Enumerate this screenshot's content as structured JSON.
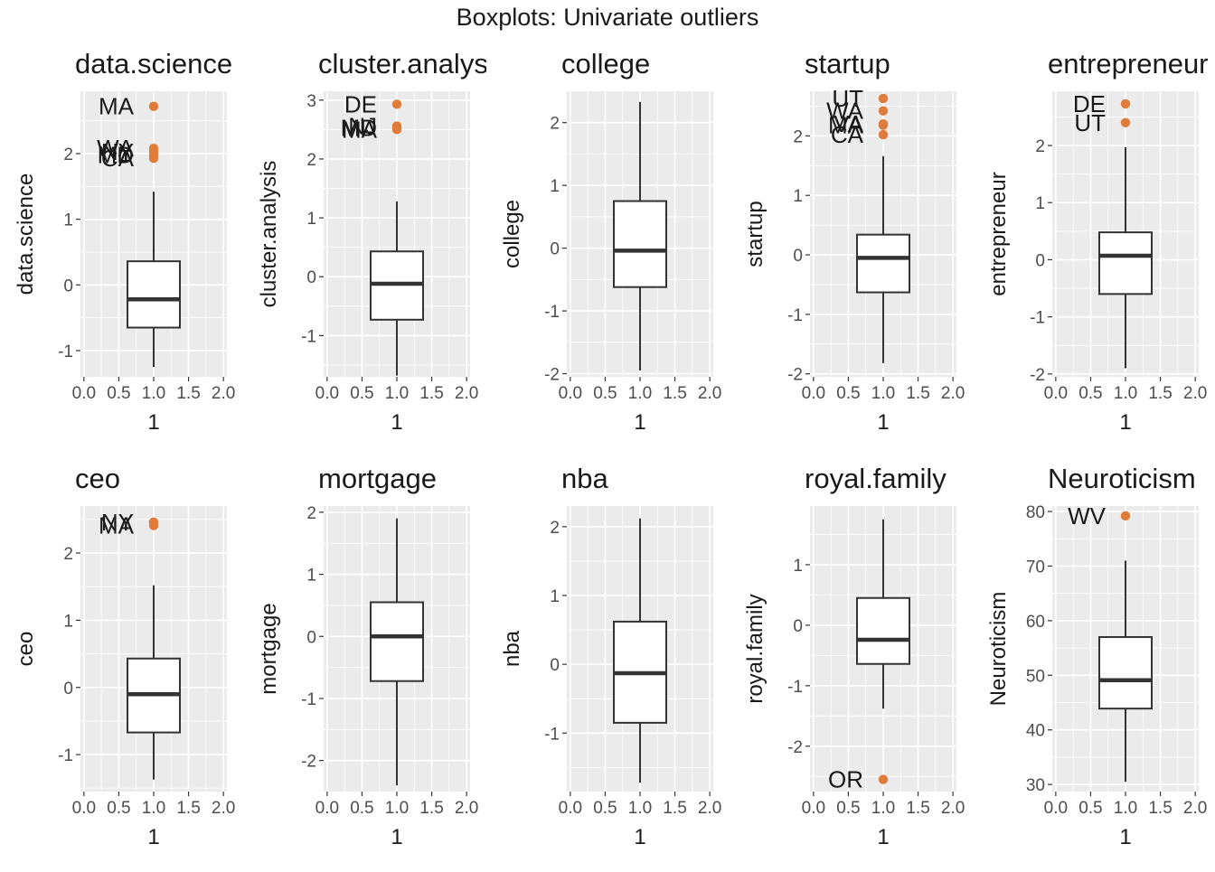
{
  "title": "Boxplots: Univariate outliers",
  "colors": {
    "panel_bg": "#EBEBEB",
    "grid": "#FFFFFF",
    "outlier": "#E07B39",
    "box_line": "#333333",
    "text": "#1a1a1a",
    "tick_text": "#4D4D4D"
  },
  "chart_data": [
    {
      "type": "boxplot",
      "title": "data.science",
      "ylabel": "data.science",
      "xlabel": "1",
      "xlim": [
        -0.05,
        2.05
      ],
      "x_ticks": [
        "0.0",
        "0.5",
        "1.0",
        "1.5",
        "2.0"
      ],
      "ylim": [
        -1.4,
        2.95
      ],
      "y_ticks": [
        -1,
        0,
        1,
        2
      ],
      "box": {
        "x": 1,
        "min": -1.25,
        "q1": -0.65,
        "median": -0.22,
        "q3": 0.36,
        "max": 1.42
      },
      "outliers": [
        {
          "value": 2.72,
          "label": "MA"
        },
        {
          "value": 2.08,
          "label": "WA"
        },
        {
          "value": 2.03,
          "label": "NY"
        },
        {
          "value": 1.98,
          "label": "MD"
        },
        {
          "value": 1.93,
          "label": "CA"
        }
      ]
    },
    {
      "type": "boxplot",
      "title": "cluster.analysis",
      "ylabel": "cluster.analysis",
      "xlabel": "1",
      "xlim": [
        -0.05,
        2.05
      ],
      "x_ticks": [
        "0.0",
        "0.5",
        "1.0",
        "1.5",
        "2.0"
      ],
      "ylim": [
        -1.7,
        3.15
      ],
      "y_ticks": [
        -1,
        0,
        1,
        2,
        3
      ],
      "box": {
        "x": 1,
        "min": -1.68,
        "q1": -0.73,
        "median": -0.12,
        "q3": 0.43,
        "max": 1.28
      },
      "outliers": [
        {
          "value": 2.93,
          "label": "DE"
        },
        {
          "value": 2.56,
          "label": "NJ"
        },
        {
          "value": 2.53,
          "label": "MD"
        },
        {
          "value": 2.5,
          "label": "MA"
        }
      ]
    },
    {
      "type": "boxplot",
      "title": "college",
      "ylabel": "college",
      "xlabel": "1",
      "xlim": [
        -0.05,
        2.05
      ],
      "x_ticks": [
        "0.0",
        "0.5",
        "1.0",
        "1.5",
        "2.0"
      ],
      "ylim": [
        -2.05,
        2.5
      ],
      "y_ticks": [
        -2,
        -1,
        0,
        1,
        2
      ],
      "box": {
        "x": 1,
        "min": -1.95,
        "q1": -0.62,
        "median": -0.04,
        "q3": 0.75,
        "max": 2.33
      },
      "outliers": []
    },
    {
      "type": "boxplot",
      "title": "startup",
      "ylabel": "startup",
      "xlabel": "1",
      "xlim": [
        -0.05,
        2.05
      ],
      "x_ticks": [
        "0.0",
        "0.5",
        "1.0",
        "1.5",
        "2.0"
      ],
      "ylim": [
        -2.05,
        2.75
      ],
      "y_ticks": [
        -2,
        -1,
        0,
        1,
        2
      ],
      "box": {
        "x": 1,
        "min": -1.82,
        "q1": -0.63,
        "median": -0.05,
        "q3": 0.34,
        "max": 1.66
      },
      "outliers": [
        {
          "value": 2.63,
          "label": "UT"
        },
        {
          "value": 2.42,
          "label": "WA"
        },
        {
          "value": 2.2,
          "label": "VA"
        },
        {
          "value": 2.18,
          "label": "MA"
        },
        {
          "value": 2.02,
          "label": "CA"
        }
      ]
    },
    {
      "type": "boxplot",
      "title": "entrepreneur",
      "ylabel": "entrepreneur",
      "xlabel": "1",
      "xlim": [
        -0.05,
        2.05
      ],
      "x_ticks": [
        "0.0",
        "0.5",
        "1.0",
        "1.5",
        "2.0"
      ],
      "ylim": [
        -2.05,
        2.95
      ],
      "y_ticks": [
        -2,
        -1,
        0,
        1,
        2
      ],
      "box": {
        "x": 1,
        "min": -1.9,
        "q1": -0.6,
        "median": 0.07,
        "q3": 0.48,
        "max": 1.97
      },
      "outliers": [
        {
          "value": 2.73,
          "label": "DE"
        },
        {
          "value": 2.4,
          "label": "UT"
        }
      ]
    },
    {
      "type": "boxplot",
      "title": "ceo",
      "ylabel": "ceo",
      "xlabel": "1",
      "xlim": [
        -0.05,
        2.05
      ],
      "x_ticks": [
        "0.0",
        "0.5",
        "1.0",
        "1.5",
        "2.0"
      ],
      "ylim": [
        -1.55,
        2.7
      ],
      "y_ticks": [
        -1,
        0,
        1,
        2
      ],
      "box": {
        "x": 1,
        "min": -1.37,
        "q1": -0.67,
        "median": -0.1,
        "q3": 0.43,
        "max": 1.52
      },
      "outliers": [
        {
          "value": 2.46,
          "label": "NY"
        },
        {
          "value": 2.41,
          "label": "MA"
        }
      ]
    },
    {
      "type": "boxplot",
      "title": "mortgage",
      "ylabel": "mortgage",
      "xlabel": "1",
      "xlim": [
        -0.05,
        2.05
      ],
      "x_ticks": [
        "0.0",
        "0.5",
        "1.0",
        "1.5",
        "2.0"
      ],
      "ylim": [
        -2.5,
        2.1
      ],
      "y_ticks": [
        -2,
        -1,
        0,
        1,
        2
      ],
      "box": {
        "x": 1,
        "min": -2.4,
        "q1": -0.72,
        "median": 0.0,
        "q3": 0.55,
        "max": 1.9
      },
      "outliers": []
    },
    {
      "type": "boxplot",
      "title": "nba",
      "ylabel": "nba",
      "xlabel": "1",
      "xlim": [
        -0.05,
        2.05
      ],
      "x_ticks": [
        "0.0",
        "0.5",
        "1.0",
        "1.5",
        "2.0"
      ],
      "ylim": [
        -1.85,
        2.3
      ],
      "y_ticks": [
        -1,
        0,
        1,
        2
      ],
      "box": {
        "x": 1,
        "min": -1.72,
        "q1": -0.85,
        "median": -0.13,
        "q3": 0.62,
        "max": 2.12
      },
      "outliers": []
    },
    {
      "type": "boxplot",
      "title": "royal.family",
      "ylabel": "royal.family",
      "xlabel": "1",
      "xlim": [
        -0.05,
        2.05
      ],
      "x_ticks": [
        "0.0",
        "0.5",
        "1.0",
        "1.5",
        "2.0"
      ],
      "ylim": [
        -2.75,
        1.97
      ],
      "y_ticks": [
        -2,
        -1,
        0,
        1
      ],
      "box": {
        "x": 1,
        "min": -1.38,
        "q1": -0.64,
        "median": -0.24,
        "q3": 0.45,
        "max": 1.75
      },
      "outliers": [
        {
          "value": -2.55,
          "label": "OR"
        }
      ]
    },
    {
      "type": "boxplot",
      "title": "Neuroticism",
      "ylabel": "Neuroticism",
      "xlabel": "1",
      "xlim": [
        -0.05,
        2.05
      ],
      "x_ticks": [
        "0.0",
        "0.5",
        "1.0",
        "1.5",
        "2.0"
      ],
      "ylim": [
        28.7,
        81.0
      ],
      "y_ticks": [
        30,
        40,
        50,
        60,
        70,
        80
      ],
      "box": {
        "x": 1,
        "min": 30.5,
        "q1": 43.9,
        "median": 49.1,
        "q3": 57.0,
        "max": 71.0
      },
      "outliers": [
        {
          "value": 79.2,
          "label": "WV"
        }
      ]
    }
  ]
}
